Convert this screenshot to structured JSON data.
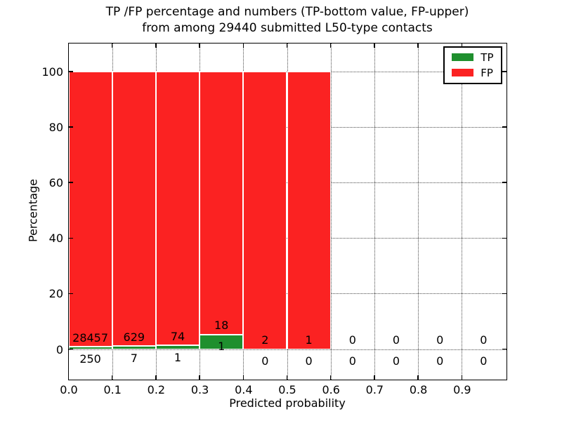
{
  "title": {
    "line1": "TP /FP percentage and numbers (TP-bottom value, FP-upper)",
    "line2": "from among 29440 submitted L50-type contacts"
  },
  "axes": {
    "xlabel": "Predicted probability",
    "ylabel": "Percentage",
    "x_tick_labels": [
      "0.0",
      "0.1",
      "0.2",
      "0.3",
      "0.4",
      "0.5",
      "0.6",
      "0.7",
      "0.8",
      "0.9"
    ],
    "y_tick_labels": [
      "0",
      "20",
      "40",
      "60",
      "80",
      "100"
    ]
  },
  "legend": {
    "items": [
      {
        "label": "TP",
        "color": "#1f8f2e"
      },
      {
        "label": "FP",
        "color": "#fb2222"
      }
    ]
  },
  "colors": {
    "tp_green": "#1f8f2e",
    "fp_red": "#fb2222",
    "grid": "#4a4a4a",
    "bar_edge": "#ffffff",
    "spine": "#000000",
    "text": "#000000"
  },
  "chart_data": {
    "type": "bar",
    "stacked_percent": true,
    "title": "TP /FP percentage and numbers (TP-bottom value, FP-upper) from among 29440 submitted L50-type contacts",
    "xlabel": "Predicted probability",
    "ylabel": "Percentage",
    "total_submitted": 29440,
    "bin_width": 0.1,
    "bin_starts": [
      0.0,
      0.1,
      0.2,
      0.3,
      0.4,
      0.5,
      0.6,
      0.7,
      0.8,
      0.9
    ],
    "x_tick_values": [
      0.0,
      0.1,
      0.2,
      0.3,
      0.4,
      0.5,
      0.6,
      0.7,
      0.8,
      0.9
    ],
    "y_tick_values": [
      0,
      20,
      40,
      60,
      80,
      100
    ],
    "xlim": [
      0.0,
      1.0
    ],
    "ylim": [
      -10.6,
      110.2
    ],
    "grid": true,
    "legend_position": "upper right",
    "series": [
      {
        "name": "TP",
        "color": "#1f8f2e",
        "counts": [
          250,
          7,
          1,
          1,
          0,
          0,
          0,
          0,
          0,
          0
        ]
      },
      {
        "name": "FP",
        "color": "#fb2222",
        "counts": [
          28457,
          629,
          74,
          18,
          2,
          1,
          0,
          0,
          0,
          0
        ]
      }
    ]
  }
}
